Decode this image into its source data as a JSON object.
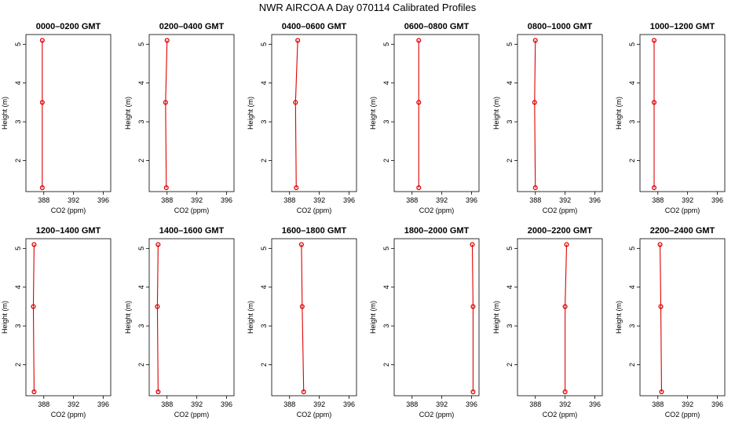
{
  "title": "NWR AIRCOA A  Day 070114  Calibrated Profiles",
  "colors": {
    "profile": "#e00000",
    "axis": "#000000",
    "background": "#ffffff"
  },
  "chart_data": [
    {
      "type": "line",
      "title": "0000–0200 GMT",
      "xlabel": "CO2 (ppm)",
      "ylabel": "Height (m)",
      "xlim": [
        385.6,
        397
      ],
      "ylim": [
        1.2,
        5.25
      ],
      "xticks": [
        388,
        392,
        396
      ],
      "yticks": [
        2,
        3,
        4,
        5
      ],
      "heights": [
        1.3,
        3.5,
        5.1
      ],
      "x": [
        387.8,
        387.8,
        387.8
      ]
    },
    {
      "type": "line",
      "title": "0200–0400 GMT",
      "xlabel": "CO2 (ppm)",
      "ylabel": "Height (m)",
      "xlim": [
        385.6,
        397
      ],
      "ylim": [
        1.2,
        5.25
      ],
      "xticks": [
        388,
        392,
        396
      ],
      "yticks": [
        2,
        3,
        4,
        5
      ],
      "heights": [
        1.3,
        3.5,
        5.1
      ],
      "x": [
        387.9,
        387.8,
        388.0
      ]
    },
    {
      "type": "line",
      "title": "0400–0600 GMT",
      "xlabel": "CO2 (ppm)",
      "ylabel": "Height (m)",
      "xlim": [
        385.6,
        397
      ],
      "ylim": [
        1.2,
        5.25
      ],
      "xticks": [
        388,
        392,
        396
      ],
      "yticks": [
        2,
        3,
        4,
        5
      ],
      "heights": [
        1.3,
        3.5,
        5.1
      ],
      "x": [
        388.9,
        388.8,
        389.1
      ]
    },
    {
      "type": "line",
      "title": "0600–0800 GMT",
      "xlabel": "CO2 (ppm)",
      "ylabel": "Height (m)",
      "xlim": [
        385.6,
        397
      ],
      "ylim": [
        1.2,
        5.25
      ],
      "xticks": [
        388,
        392,
        396
      ],
      "yticks": [
        2,
        3,
        4,
        5
      ],
      "heights": [
        1.3,
        3.5,
        5.1
      ],
      "x": [
        388.9,
        388.9,
        388.9
      ]
    },
    {
      "type": "line",
      "title": "0800–1000 GMT",
      "xlabel": "CO2 (ppm)",
      "ylabel": "Height (m)",
      "xlim": [
        385.6,
        397
      ],
      "ylim": [
        1.2,
        5.25
      ],
      "xticks": [
        388,
        392,
        396
      ],
      "yticks": [
        2,
        3,
        4,
        5
      ],
      "heights": [
        1.3,
        3.5,
        5.1
      ],
      "x": [
        388.0,
        387.9,
        388.0
      ]
    },
    {
      "type": "line",
      "title": "1000–1200 GMT",
      "xlabel": "CO2 (ppm)",
      "ylabel": "Height (m)",
      "xlim": [
        385.6,
        397
      ],
      "ylim": [
        1.2,
        5.25
      ],
      "xticks": [
        388,
        392,
        396
      ],
      "yticks": [
        2,
        3,
        4,
        5
      ],
      "heights": [
        1.3,
        3.5,
        5.1
      ],
      "x": [
        387.5,
        387.5,
        387.5
      ]
    },
    {
      "type": "line",
      "title": "1200–1400 GMT",
      "xlabel": "CO2 (ppm)",
      "ylabel": "Height (m)",
      "xlim": [
        385.6,
        397
      ],
      "ylim": [
        1.2,
        5.25
      ],
      "xticks": [
        388,
        392,
        396
      ],
      "yticks": [
        2,
        3,
        4,
        5
      ],
      "heights": [
        1.3,
        3.5,
        5.1
      ],
      "x": [
        386.7,
        386.6,
        386.7
      ]
    },
    {
      "type": "line",
      "title": "1400–1600 GMT",
      "xlabel": "CO2 (ppm)",
      "ylabel": "Height (m)",
      "xlim": [
        385.6,
        397
      ],
      "ylim": [
        1.2,
        5.25
      ],
      "xticks": [
        388,
        392,
        396
      ],
      "yticks": [
        2,
        3,
        4,
        5
      ],
      "heights": [
        1.3,
        3.5,
        5.1
      ],
      "x": [
        386.8,
        386.7,
        386.8
      ]
    },
    {
      "type": "line",
      "title": "1600–1800 GMT",
      "xlabel": "CO2 (ppm)",
      "ylabel": "Height (m)",
      "xlim": [
        385.6,
        397
      ],
      "ylim": [
        1.2,
        5.25
      ],
      "xticks": [
        388,
        392,
        396
      ],
      "yticks": [
        2,
        3,
        4,
        5
      ],
      "heights": [
        1.3,
        3.5,
        5.1
      ],
      "x": [
        389.9,
        389.7,
        389.6
      ]
    },
    {
      "type": "line",
      "title": "1800–2000 GMT",
      "xlabel": "CO2 (ppm)",
      "ylabel": "Height (m)",
      "xlim": [
        385.6,
        397
      ],
      "ylim": [
        1.2,
        5.25
      ],
      "xticks": [
        388,
        392,
        396
      ],
      "yticks": [
        2,
        3,
        4,
        5
      ],
      "heights": [
        1.3,
        3.5,
        5.1
      ],
      "x": [
        396.2,
        396.2,
        396.1
      ]
    },
    {
      "type": "line",
      "title": "2000–2200 GMT",
      "xlabel": "CO2 (ppm)",
      "ylabel": "Height (m)",
      "xlim": [
        385.6,
        397
      ],
      "ylim": [
        1.2,
        5.25
      ],
      "xticks": [
        388,
        392,
        396
      ],
      "yticks": [
        2,
        3,
        4,
        5
      ],
      "heights": [
        1.3,
        3.5,
        5.1
      ],
      "x": [
        392.0,
        392.0,
        392.2
      ]
    },
    {
      "type": "line",
      "title": "2200–2400 GMT",
      "xlabel": "CO2 (ppm)",
      "ylabel": "Height (m)",
      "xlim": [
        385.6,
        397
      ],
      "ylim": [
        1.2,
        5.25
      ],
      "xticks": [
        388,
        392,
        396
      ],
      "yticks": [
        2,
        3,
        4,
        5
      ],
      "heights": [
        1.3,
        3.5,
        5.1
      ],
      "x": [
        388.5,
        388.4,
        388.3
      ]
    }
  ]
}
